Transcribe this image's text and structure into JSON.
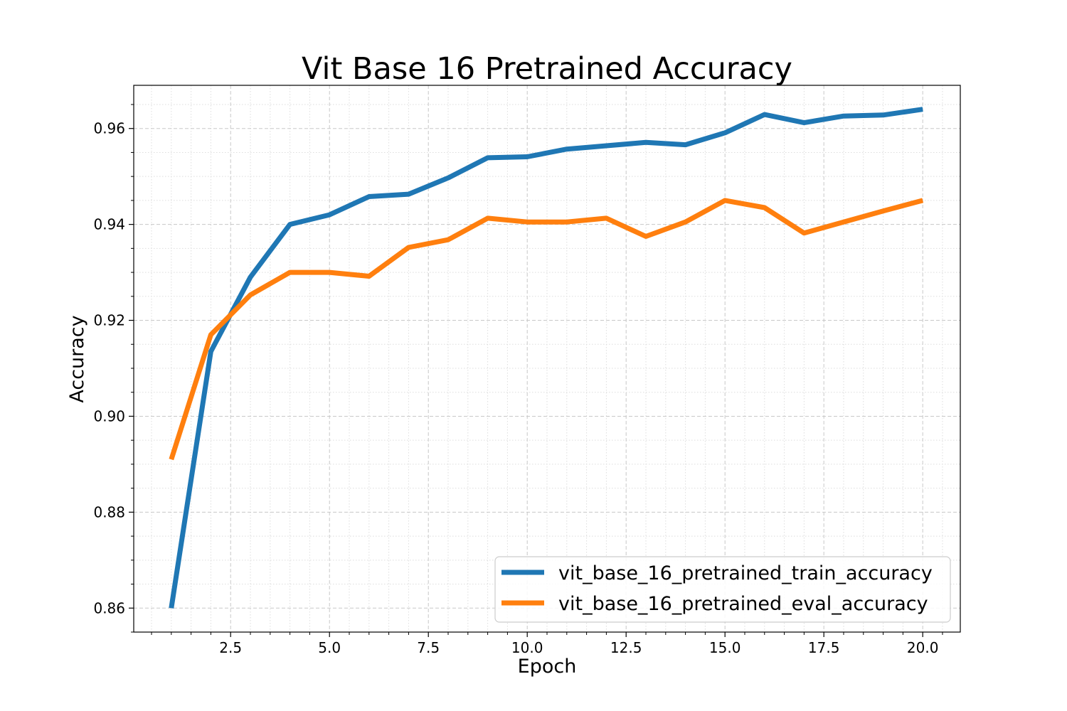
{
  "chart_data": {
    "type": "line",
    "title": "Vit Base 16 Pretrained Accuracy",
    "xlabel": "Epoch",
    "ylabel": "Accuracy",
    "xlim": [
      0.05,
      20.95
    ],
    "ylim": [
      0.855,
      0.969
    ],
    "x": [
      1,
      2,
      3,
      4,
      5,
      6,
      7,
      8,
      9,
      10,
      11,
      12,
      13,
      14,
      15,
      16,
      17,
      18,
      19,
      20
    ],
    "xticks": [
      2.5,
      5.0,
      7.5,
      10.0,
      12.5,
      15.0,
      17.5,
      20.0
    ],
    "xtick_labels": [
      "2.5",
      "5.0",
      "7.5",
      "10.0",
      "12.5",
      "15.0",
      "17.5",
      "20.0"
    ],
    "yticks": [
      0.86,
      0.88,
      0.9,
      0.92,
      0.94,
      0.96
    ],
    "ytick_labels": [
      "0.86",
      "0.88",
      "0.90",
      "0.92",
      "0.94",
      "0.96"
    ],
    "grid": true,
    "legend_position": "lower-right",
    "series": [
      {
        "name": "vit_base_16_pretrained_train_accuracy",
        "color": "#1f77b4",
        "values": [
          0.86,
          0.9135,
          0.929,
          0.94,
          0.942,
          0.9458,
          0.9463,
          0.9497,
          0.9539,
          0.9541,
          0.9557,
          0.9564,
          0.9571,
          0.9566,
          0.9591,
          0.9629,
          0.9612,
          0.9626,
          0.9628,
          0.964
        ]
      },
      {
        "name": "vit_base_16_pretrained_eval_accuracy",
        "color": "#ff7f0e",
        "values": [
          0.891,
          0.917,
          0.9253,
          0.93,
          0.93,
          0.9292,
          0.9352,
          0.9368,
          0.9413,
          0.9405,
          0.9405,
          0.9413,
          0.9375,
          0.9405,
          0.945,
          0.9435,
          0.9382,
          0.9405,
          0.9428,
          0.945
        ]
      }
    ]
  }
}
